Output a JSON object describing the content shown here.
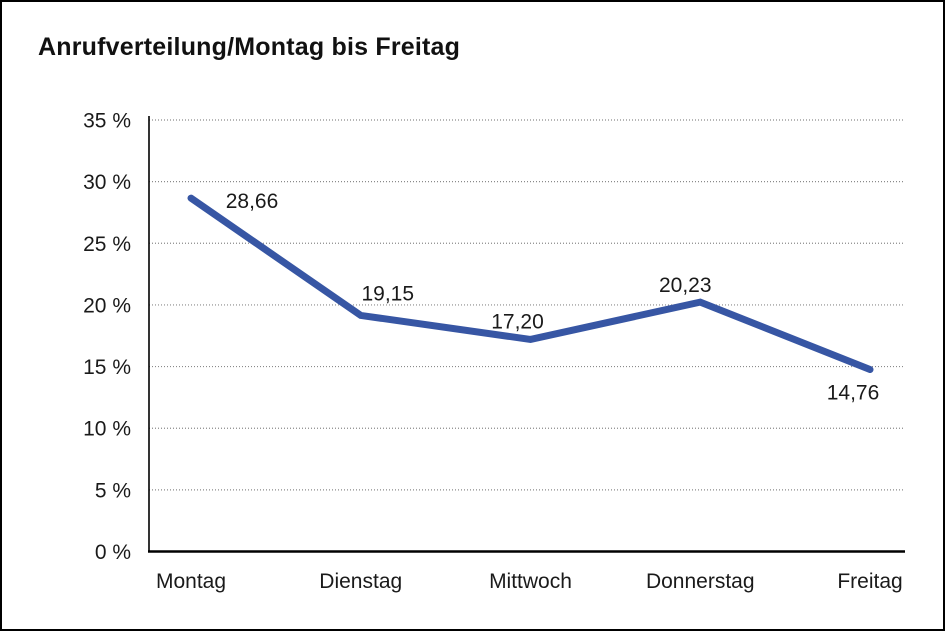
{
  "title": "Anrufverteilung/Montag bis Freitag",
  "chart_data": {
    "type": "line",
    "title": "Anrufverteilung/Montag bis Freitag",
    "categories": [
      "Montag",
      "Dienstag",
      "Mittwoch",
      "Donnerstag",
      "Freitag"
    ],
    "values": [
      28.66,
      19.15,
      17.2,
      20.23,
      14.76
    ],
    "value_labels": [
      "28,66",
      "19,15",
      "17,20",
      "20,23",
      "14,76"
    ],
    "y_tick_values": [
      0,
      5,
      10,
      15,
      20,
      25,
      30,
      35
    ],
    "y_tick_labels": [
      "0 %",
      "5 %",
      "10 %",
      "15 %",
      "20 %",
      "25 %",
      "30 %",
      "35 %"
    ],
    "ylim": [
      0,
      35
    ],
    "xlabel": "",
    "ylabel": "",
    "grid": "horizontal-dotted",
    "legend_position": "none",
    "colors": {
      "line": "#3756A4",
      "axis": "#000000",
      "gridline": "#8a8a8a",
      "text": "#1a1a1a",
      "background": "#ffffff",
      "border": "#000000"
    }
  }
}
